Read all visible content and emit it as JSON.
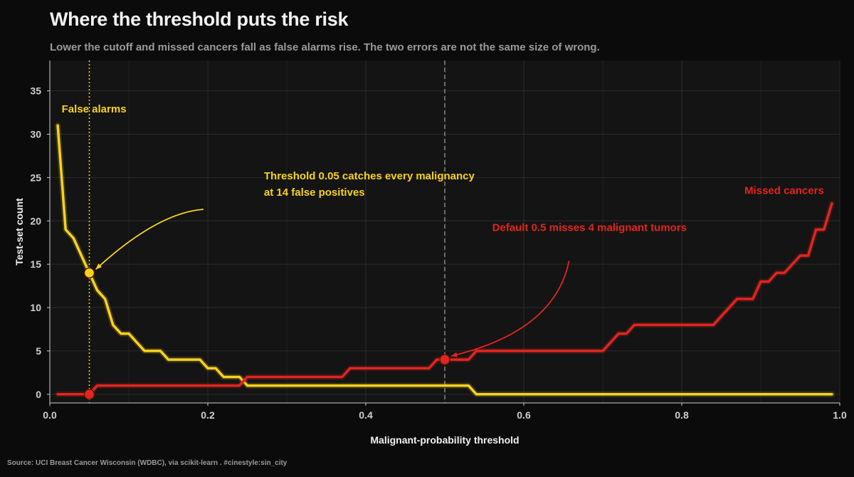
{
  "header": {
    "title": "Where the threshold puts the risk",
    "subtitle": "Lower the cutoff and missed cancers fall as false alarms rise. The two errors are not the same size of wrong."
  },
  "footer": {
    "source": "Source: UCI Breast Cancer Wisconsin (WDBC), via scikit-learn  .  #cinestyle:sin_city"
  },
  "colors": {
    "background": "#0b0b0b",
    "panel": "#141414",
    "grid": "#2a2a2a",
    "false_alarms": "#f7d21f",
    "missed_cancers": "#e3251f",
    "ref_line": "#8a8a8a"
  },
  "chart_data": {
    "type": "line",
    "title": "Where the threshold puts the risk",
    "xlabel": "Malignant-probability threshold",
    "ylabel": "Test-set count",
    "xlim": [
      0,
      1
    ],
    "ylim": [
      -1,
      38.5
    ],
    "xticks": [
      0,
      0.2,
      0.4,
      0.6,
      0.8,
      1.0
    ],
    "xtick_labels": [
      "0.0",
      "0.2",
      "0.4",
      "0.6",
      "0.8",
      "1.0"
    ],
    "yticks": [
      0,
      5,
      10,
      15,
      20,
      25,
      30,
      35
    ],
    "ytick_labels": [
      "0",
      "5",
      "10",
      "15",
      "20",
      "25",
      "30",
      "35"
    ],
    "grid": true,
    "series": [
      {
        "name": "False alarms",
        "color": "#f7d21f",
        "points": [
          [
            0.01,
            31
          ],
          [
            0.02,
            19
          ],
          [
            0.03,
            18
          ],
          [
            0.04,
            16
          ],
          [
            0.05,
            14
          ],
          [
            0.06,
            12
          ],
          [
            0.07,
            11
          ],
          [
            0.08,
            8
          ],
          [
            0.09,
            7
          ],
          [
            0.1,
            7
          ],
          [
            0.11,
            6
          ],
          [
            0.12,
            5
          ],
          [
            0.13,
            5
          ],
          [
            0.14,
            5
          ],
          [
            0.15,
            4
          ],
          [
            0.16,
            4
          ],
          [
            0.17,
            4
          ],
          [
            0.18,
            4
          ],
          [
            0.19,
            4
          ],
          [
            0.2,
            3
          ],
          [
            0.21,
            3
          ],
          [
            0.22,
            2
          ],
          [
            0.23,
            2
          ],
          [
            0.24,
            2
          ],
          [
            0.25,
            1
          ],
          [
            0.3,
            1
          ],
          [
            0.35,
            1
          ],
          [
            0.4,
            1
          ],
          [
            0.45,
            1
          ],
          [
            0.5,
            1
          ],
          [
            0.53,
            1
          ],
          [
            0.54,
            0
          ],
          [
            0.6,
            0
          ],
          [
            0.7,
            0
          ],
          [
            0.8,
            0
          ],
          [
            0.9,
            0
          ],
          [
            0.99,
            0
          ]
        ]
      },
      {
        "name": "Missed cancers",
        "color": "#e3251f",
        "points": [
          [
            0.01,
            0
          ],
          [
            0.05,
            0
          ],
          [
            0.06,
            1
          ],
          [
            0.1,
            1
          ],
          [
            0.2,
            1
          ],
          [
            0.24,
            1
          ],
          [
            0.25,
            2
          ],
          [
            0.3,
            2
          ],
          [
            0.37,
            2
          ],
          [
            0.38,
            3
          ],
          [
            0.44,
            3
          ],
          [
            0.48,
            3
          ],
          [
            0.49,
            4
          ],
          [
            0.5,
            4
          ],
          [
            0.53,
            4
          ],
          [
            0.54,
            5
          ],
          [
            0.6,
            5
          ],
          [
            0.65,
            5
          ],
          [
            0.7,
            5
          ],
          [
            0.71,
            6
          ],
          [
            0.72,
            7
          ],
          [
            0.73,
            7
          ],
          [
            0.74,
            8
          ],
          [
            0.8,
            8
          ],
          [
            0.84,
            8
          ],
          [
            0.85,
            9
          ],
          [
            0.86,
            10
          ],
          [
            0.87,
            11
          ],
          [
            0.89,
            11
          ],
          [
            0.9,
            13
          ],
          [
            0.91,
            13
          ],
          [
            0.92,
            14
          ],
          [
            0.93,
            14
          ],
          [
            0.94,
            15
          ],
          [
            0.95,
            16
          ],
          [
            0.96,
            16
          ],
          [
            0.97,
            19
          ],
          [
            0.98,
            19
          ],
          [
            0.99,
            22
          ]
        ]
      }
    ],
    "reference_lines": [
      {
        "x": 0.05,
        "style": "dotted",
        "color": "#f7d21f"
      },
      {
        "x": 0.5,
        "style": "dashed",
        "color": "#8a8a8a"
      }
    ],
    "highlight_points": [
      {
        "x": 0.05,
        "y": 14,
        "color": "#f7d21f"
      },
      {
        "x": 0.05,
        "y": 0,
        "color": "#e3251f"
      },
      {
        "x": 0.5,
        "y": 4,
        "color": "#e3251f"
      }
    ],
    "annotations": [
      {
        "lines": [
          "Threshold 0.05 catches every malignancy",
          "at 14 false positives"
        ],
        "color": "#f7d21f",
        "anchor": [
          0.19,
          21.5
        ],
        "arrow_to": [
          0.05,
          14
        ]
      },
      {
        "lines": [
          "Default 0.5 misses 4 malignant tumors"
        ],
        "color": "#e3251f",
        "anchor": [
          0.56,
          17.2
        ],
        "arrow_to": [
          0.5,
          4
        ]
      }
    ],
    "series_labels": [
      {
        "text": "False alarms",
        "color": "#f7d21f",
        "x": 0.015,
        "y": 32.5,
        "align": "start"
      },
      {
        "text": "Missed cancers",
        "color": "#e3251f",
        "x": 0.98,
        "y": 23.1,
        "align": "end"
      }
    ]
  }
}
